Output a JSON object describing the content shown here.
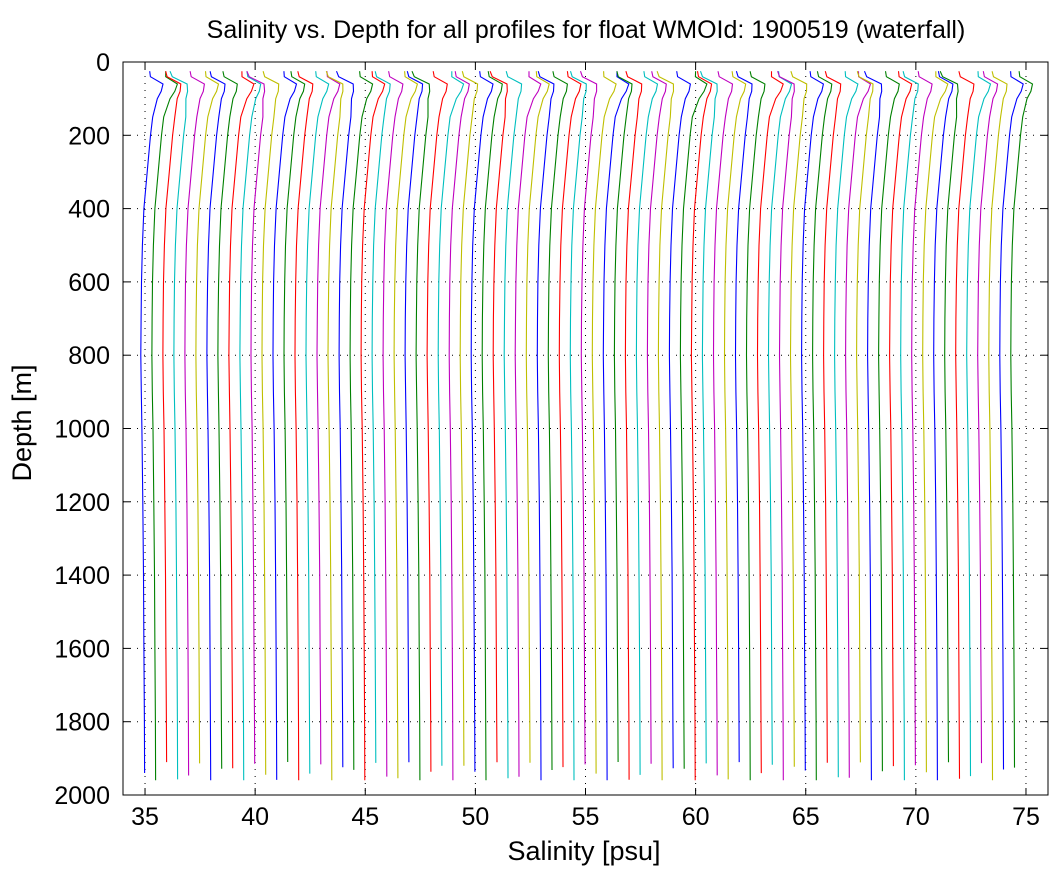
{
  "chart_data": {
    "type": "line",
    "title": "Salinity vs. Depth for all profiles for float WMOId: 1900519 (waterfall)",
    "xlabel": "Salinity [psu]",
    "ylabel": "Depth [m]",
    "xlim": [
      34,
      76
    ],
    "ylim": [
      0,
      2000
    ],
    "y_reversed": true,
    "xticks": [
      "35",
      "40",
      "45",
      "50",
      "55",
      "60",
      "65",
      "70",
      "75"
    ],
    "yticks": [
      "0",
      "200",
      "400",
      "600",
      "800",
      "1000",
      "1200",
      "1400",
      "1600",
      "1800",
      "2000"
    ],
    "grid": "dotted",
    "legend": "none",
    "waterfall_offset_psu": 0.5,
    "profile_count": 80,
    "base_profile": {
      "depth": [
        25,
        40,
        60,
        80,
        100,
        150,
        200,
        300,
        400,
        500,
        600,
        700,
        800,
        900,
        1000,
        1200,
        1400,
        1600,
        1800,
        1960
      ],
      "salinity": [
        35.05,
        35.1,
        35.7,
        35.65,
        35.5,
        35.35,
        35.25,
        35.1,
        34.95,
        34.88,
        34.84,
        34.82,
        34.81,
        34.83,
        34.86,
        34.9,
        34.93,
        34.95,
        34.97,
        34.98
      ]
    },
    "series_colors": [
      "#0000ff",
      "#008000",
      "#ff0000",
      "#00bfbf",
      "#bf00bf",
      "#bfbf00"
    ]
  }
}
